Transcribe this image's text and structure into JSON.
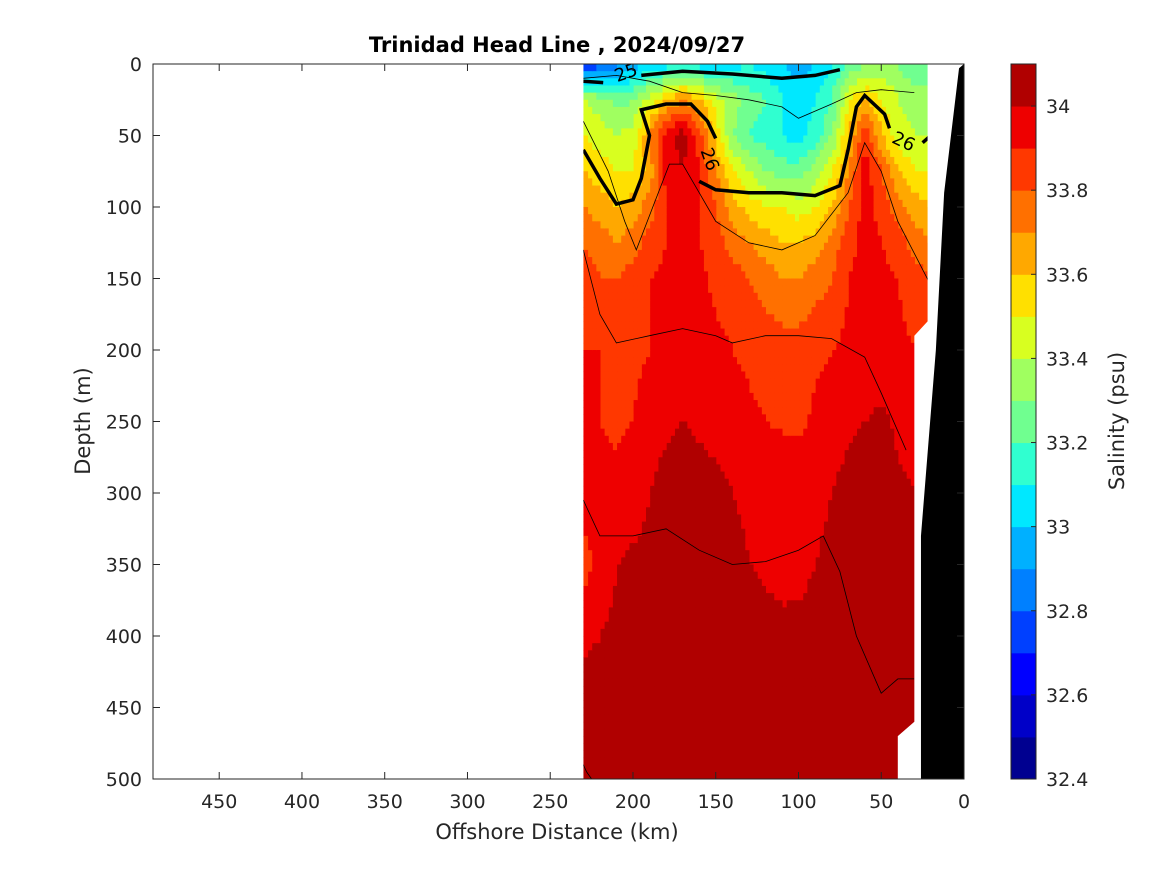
{
  "chart_data": {
    "type": "heatmap",
    "title": "Trinidad Head Line , 2024/09/27",
    "xlabel": "Offshore Distance (km)",
    "ylabel": "Depth (m)",
    "colorbar_label": "Salinity (psu)",
    "xlim": [
      490,
      0
    ],
    "ylim": [
      0,
      500
    ],
    "x_ticks": [
      450,
      400,
      350,
      300,
      250,
      200,
      150,
      100,
      50,
      0
    ],
    "y_ticks": [
      0,
      50,
      100,
      150,
      200,
      250,
      300,
      350,
      400,
      450,
      500
    ],
    "clim": [
      32.4,
      34.1
    ],
    "colorbar_ticks": [
      34,
      33.8,
      33.6,
      33.4,
      33.2,
      33,
      32.8,
      32.6,
      32.4
    ],
    "levels": [
      32.4,
      32.5,
      32.6,
      32.7,
      32.8,
      32.9,
      33.0,
      33.1,
      33.2,
      33.3,
      33.4,
      33.5,
      33.6,
      33.7,
      33.8,
      33.9,
      34.0,
      34.1
    ],
    "level_colors": [
      "#000090",
      "#0000c8",
      "#0000ff",
      "#0040ff",
      "#0080ff",
      "#00b0ff",
      "#00e8ff",
      "#30ffd0",
      "#70ff90",
      "#a0ff60",
      "#d8ff20",
      "#ffe000",
      "#ffa800",
      "#ff7000",
      "#ff3800",
      "#ee0000",
      "#b00000"
    ],
    "data_extent_km": [
      230,
      20
    ],
    "distances_km": [
      230,
      220,
      210,
      200,
      190,
      180,
      170,
      160,
      150,
      140,
      130,
      120,
      110,
      100,
      90,
      80,
      70,
      60,
      50,
      40,
      30,
      20
    ],
    "depths_m": [
      0,
      25,
      50,
      75,
      100,
      125,
      150,
      200,
      250,
      300,
      350,
      400,
      450,
      500
    ],
    "salinity_psu": [
      [
        32.7,
        32.75,
        32.85,
        32.95,
        33.0,
        33.05,
        33.1,
        33.05,
        33.0,
        33.05,
        33.1,
        33.05,
        33.0,
        32.95,
        33.0,
        33.1,
        33.2,
        33.3,
        33.35,
        33.3,
        33.2,
        33.2
      ],
      [
        33.4,
        33.35,
        33.25,
        33.3,
        33.45,
        33.6,
        33.7,
        33.6,
        33.45,
        33.35,
        33.25,
        33.2,
        33.1,
        33.05,
        33.1,
        33.2,
        33.5,
        33.6,
        33.5,
        33.4,
        33.35,
        33.35
      ],
      [
        33.5,
        33.45,
        33.4,
        33.45,
        33.7,
        33.95,
        34.05,
        33.85,
        33.55,
        33.3,
        33.2,
        33.15,
        33.1,
        33.05,
        33.15,
        33.3,
        33.6,
        33.9,
        33.6,
        33.45,
        33.4,
        33.4
      ],
      [
        33.6,
        33.55,
        33.5,
        33.5,
        33.65,
        33.95,
        34.0,
        33.9,
        33.7,
        33.5,
        33.4,
        33.3,
        33.25,
        33.25,
        33.35,
        33.5,
        33.7,
        33.95,
        33.8,
        33.6,
        33.5,
        33.5
      ],
      [
        33.7,
        33.65,
        33.6,
        33.65,
        33.75,
        33.9,
        33.95,
        33.9,
        33.8,
        33.65,
        33.55,
        33.5,
        33.5,
        33.45,
        33.5,
        33.6,
        33.8,
        33.95,
        33.85,
        33.75,
        33.65,
        33.6
      ],
      [
        33.8,
        33.75,
        33.7,
        33.75,
        33.85,
        33.9,
        33.95,
        33.9,
        33.85,
        33.75,
        33.7,
        33.65,
        33.6,
        33.6,
        33.65,
        33.75,
        33.85,
        33.95,
        33.9,
        33.85,
        33.75,
        33.7
      ],
      [
        33.85,
        33.8,
        33.8,
        33.85,
        33.9,
        33.92,
        33.95,
        33.92,
        33.88,
        33.85,
        33.8,
        33.75,
        33.7,
        33.7,
        33.75,
        33.8,
        33.9,
        33.95,
        33.92,
        33.9,
        33.85,
        33.8
      ],
      [
        33.9,
        33.9,
        33.85,
        33.88,
        33.9,
        33.92,
        33.93,
        33.94,
        33.92,
        33.9,
        33.88,
        33.86,
        33.85,
        33.85,
        33.88,
        33.9,
        33.92,
        33.95,
        33.93,
        33.92,
        33.9,
        33.9
      ],
      [
        33.92,
        33.9,
        33.88,
        33.9,
        33.95,
        33.98,
        34.0,
        33.98,
        33.96,
        33.94,
        33.92,
        33.9,
        33.89,
        33.88,
        33.92,
        33.95,
        33.98,
        34.0,
        34.02,
        33.98,
        33.95,
        33.95
      ],
      [
        33.95,
        33.94,
        33.93,
        33.95,
        34.0,
        34.05,
        34.06,
        34.05,
        34.03,
        34.0,
        33.98,
        33.96,
        33.95,
        33.96,
        33.98,
        34.0,
        34.04,
        34.06,
        34.05,
        34.02,
        34.0,
        34.0
      ],
      [
        33.85,
        33.95,
        34.0,
        34.02,
        34.03,
        34.05,
        34.06,
        34.06,
        34.05,
        34.03,
        34.0,
        33.98,
        33.96,
        33.97,
        34.0,
        34.02,
        34.04,
        34.06,
        34.05,
        34.03,
        34.02,
        34.02
      ],
      [
        33.98,
        34.0,
        34.02,
        34.04,
        34.05,
        34.06,
        34.08,
        34.1,
        34.08,
        34.06,
        34.05,
        34.04,
        34.03,
        34.03,
        34.04,
        34.05,
        34.06,
        34.07,
        34.06,
        34.05,
        34.04,
        34.04
      ],
      [
        34.05,
        34.04,
        34.03,
        34.04,
        34.06,
        34.08,
        34.1,
        34.09,
        34.07,
        34.06,
        34.05,
        34.05,
        34.05,
        34.05,
        34.06,
        34.06,
        34.07,
        34.07,
        34.06,
        34.06,
        34.06,
        34.06
      ],
      [
        34.06,
        34.05,
        34.05,
        34.06,
        34.08,
        34.1,
        34.11,
        34.1,
        34.08,
        34.07,
        34.06,
        34.06,
        34.06,
        34.06,
        34.06,
        34.07,
        34.07,
        34.07,
        34.06,
        34.06,
        34.06,
        34.06
      ]
    ],
    "contour_labels": [
      "25",
      "26",
      "26",
      "26"
    ],
    "grid": false,
    "colorbar_location": "right"
  }
}
